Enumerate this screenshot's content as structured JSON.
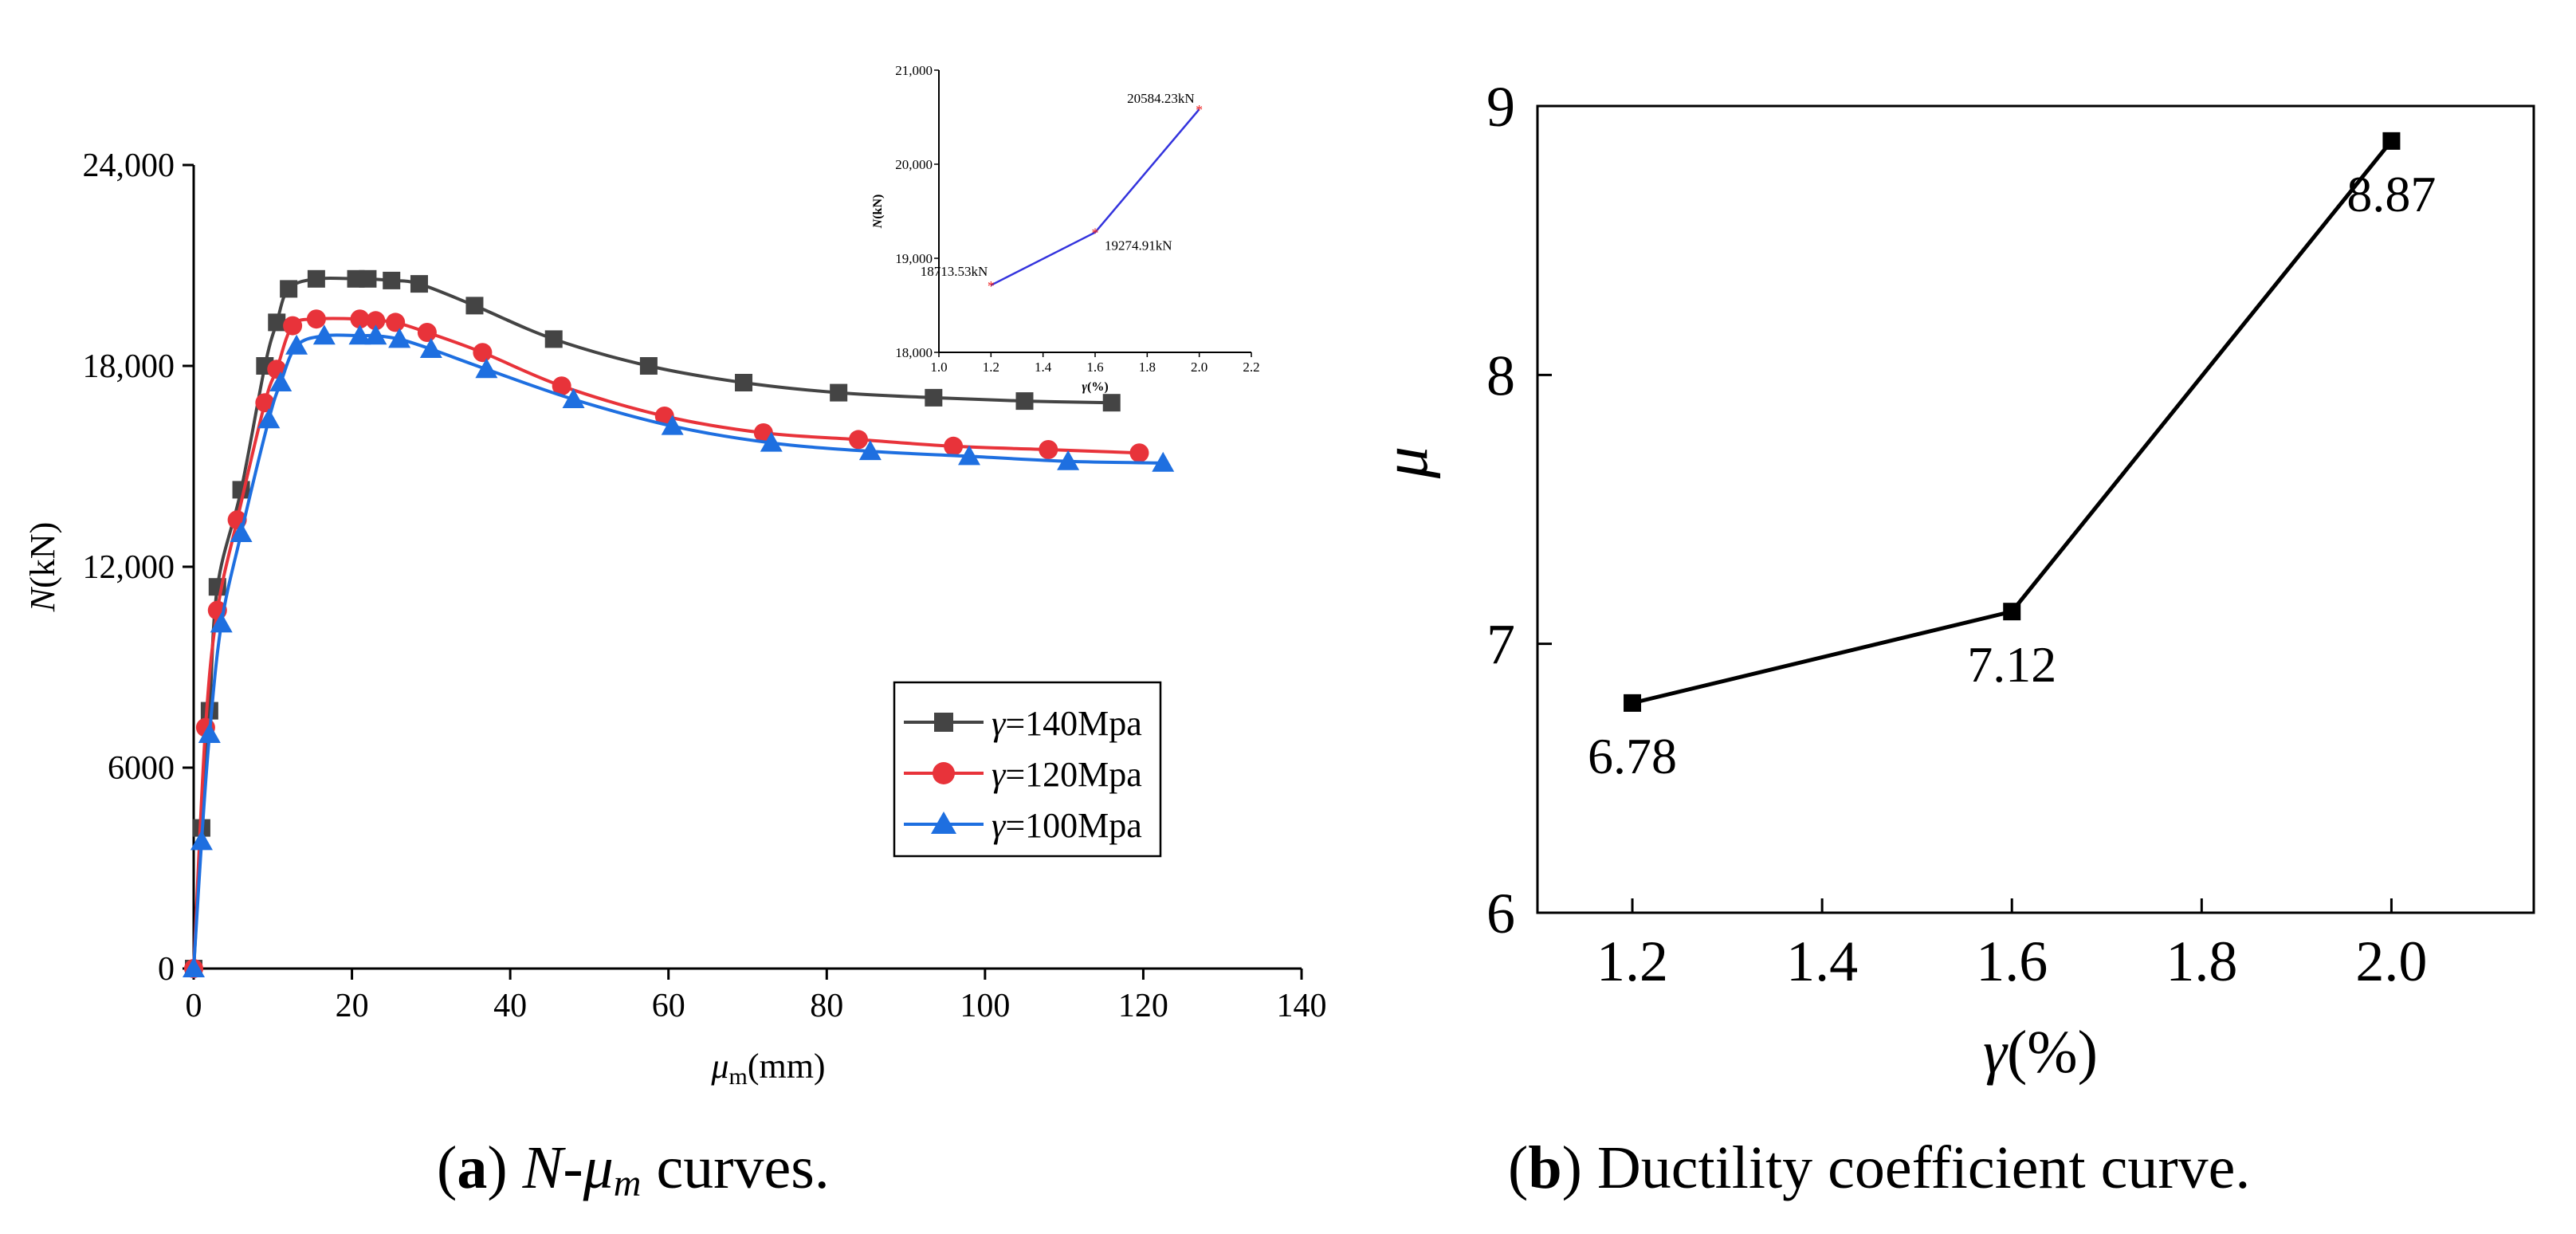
{
  "chart_data": [
    {
      "type": "line",
      "panel": "a",
      "xlabel_base": "μ",
      "xlabel_sub": "m",
      "xlabel_unit": "(mm)",
      "ylabel_var": "N",
      "ylabel_unit": "(kN)",
      "xlim": [
        0,
        140
      ],
      "ylim": [
        0,
        24000
      ],
      "xticks": [
        "0",
        "20",
        "40",
        "60",
        "80",
        "100",
        "120",
        "140"
      ],
      "xtick_values": [
        0,
        20,
        40,
        60,
        80,
        100,
        120,
        140
      ],
      "yticks": [
        "0",
        "6000",
        "12,000",
        "18,000",
        "24,000"
      ],
      "ytick_values": [
        0,
        6000,
        12000,
        18000,
        24000
      ],
      "legend_position": "center-right",
      "caption_label": "a",
      "caption_text": " curves.",
      "caption_var": "N-μ",
      "caption_sub": "m",
      "series": [
        {
          "name": "γ=140Mpa",
          "symbol": "γ",
          "label_rest": "=140Mpa",
          "color": "#444444",
          "marker": "square",
          "x": [
            0,
            1,
            2,
            3,
            6,
            9,
            10.5,
            12,
            15.5,
            20.5,
            22,
            25,
            28.5,
            35.5,
            45.5,
            57.5,
            69.5,
            81.5,
            93.5,
            105,
            116
          ],
          "y": [
            0,
            4200,
            7700,
            11400,
            14300,
            18000,
            19300,
            20300,
            20600,
            20600,
            20600,
            20550,
            20450,
            19800,
            18800,
            18000,
            17500,
            17200,
            17050,
            16950,
            16900
          ]
        },
        {
          "name": "γ=120Mpa",
          "symbol": "γ",
          "label_rest": "=120Mpa",
          "color": "#E8333A",
          "marker": "circle",
          "x": [
            0,
            1.5,
            3,
            5.5,
            9,
            10.5,
            12.5,
            15.5,
            21,
            23,
            25.5,
            29.5,
            36.5,
            46.5,
            59.5,
            72,
            84,
            96,
            108,
            119.5
          ],
          "y": [
            0,
            7200,
            10700,
            13400,
            16900,
            17900,
            19200,
            19400,
            19400,
            19350,
            19300,
            19000,
            18400,
            17400,
            16500,
            16000,
            15800,
            15600,
            15500,
            15400
          ]
        },
        {
          "name": "γ=100Mpa",
          "symbol": "γ",
          "label_rest": "=100Mpa",
          "color": "#1E6FE0",
          "marker": "triangle",
          "x": [
            0,
            1,
            2,
            3.5,
            6,
            9.5,
            11,
            13,
            16.5,
            21,
            23,
            26,
            30,
            37,
            48,
            60.5,
            73,
            85.5,
            98,
            110.5,
            122.5
          ],
          "y": [
            0,
            3800,
            7000,
            10300,
            13000,
            16400,
            17500,
            18600,
            18900,
            18900,
            18900,
            18800,
            18500,
            17900,
            17000,
            16200,
            15700,
            15450,
            15300,
            15150,
            15100
          ]
        }
      ],
      "inset": {
        "type": "line",
        "xlabel_base": "γ",
        "xlabel_unit": "(%)",
        "ylabel_var": "N",
        "ylabel_unit": "(kN)",
        "xlim": [
          1.0,
          2.2
        ],
        "ylim": [
          18000,
          21000
        ],
        "xticks": [
          "1.0",
          "1.2",
          "1.4",
          "1.6",
          "1.8",
          "2.0",
          "2.2"
        ],
        "xtick_values": [
          1.0,
          1.2,
          1.4,
          1.6,
          1.8,
          2.0,
          2.2
        ],
        "yticks": [
          "18,000",
          "19,000",
          "20,000",
          "21,000"
        ],
        "ytick_values": [
          18000,
          19000,
          20000,
          21000
        ],
        "line_color": "#3333DD",
        "marker_color": "#EE2222",
        "x": [
          1.2,
          1.6,
          2.0
        ],
        "y": [
          18713.53,
          19274.91,
          20584.23
        ],
        "labels": [
          "18713.53kN",
          "19274.91kN",
          "20584.23kN"
        ]
      }
    },
    {
      "type": "line",
      "panel": "b",
      "xlabel_base": "γ",
      "xlabel_unit": "(%)",
      "ylabel": "μ",
      "xlim": [
        1.1,
        2.15
      ],
      "ylim": [
        6,
        9
      ],
      "xticks": [
        "1.2",
        "1.4",
        "1.6",
        "1.8",
        "2.0"
      ],
      "xtick_values": [
        1.2,
        1.4,
        1.6,
        1.8,
        2.0
      ],
      "yticks": [
        "6",
        "7",
        "8",
        "9"
      ],
      "ytick_values": [
        6,
        7,
        8,
        9
      ],
      "line_color": "#000000",
      "x": [
        1.2,
        1.6,
        2.0
      ],
      "y": [
        6.78,
        7.12,
        8.87
      ],
      "labels": [
        "6.78",
        "7.12",
        "8.87"
      ],
      "caption_label": "b",
      "caption_text": " Ductility coefficient curve."
    }
  ]
}
